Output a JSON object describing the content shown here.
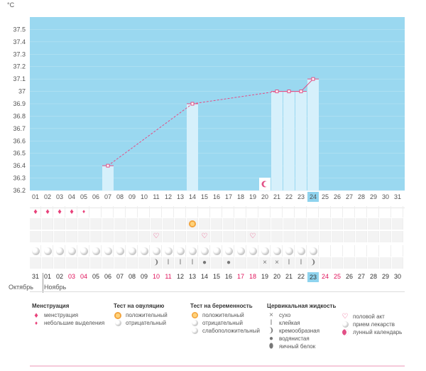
{
  "colors": {
    "chart_bg": "#9ad8f0",
    "bar_fill": "#d6f0fb",
    "line": "#e24f86",
    "accent_red": "#e0135b",
    "selected_day": "#8ed3ee"
  },
  "chart_data": {
    "type": "line",
    "unit": "°C",
    "ylim": [
      36.2,
      37.6
    ],
    "yticks": [
      "37.5",
      "37.4",
      "37.3",
      "37.2",
      "37.1",
      "37",
      "36.9",
      "36.8",
      "36.7",
      "36.6",
      "36.5",
      "36.4",
      "36.3",
      "36.2"
    ],
    "x_days": [
      "01",
      "02",
      "03",
      "04",
      "05",
      "06",
      "07",
      "08",
      "09",
      "10",
      "11",
      "12",
      "13",
      "14",
      "15",
      "16",
      "17",
      "18",
      "19",
      "20",
      "21",
      "22",
      "23",
      "24",
      "25",
      "26",
      "27",
      "28",
      "29",
      "30",
      "31"
    ],
    "selected_day": "24",
    "points": [
      {
        "day": 7,
        "value": 36.4
      },
      {
        "day": 14,
        "value": 36.9
      },
      {
        "day": 21,
        "value": 37.0
      },
      {
        "day": 22,
        "value": 37.0
      },
      {
        "day": 23,
        "value": 37.0
      },
      {
        "day": 24,
        "value": 37.1
      }
    ],
    "bars": [
      7,
      14,
      21,
      22,
      23,
      24
    ],
    "lunar_marker_day": 20
  },
  "rows": {
    "menstruation": [
      {
        "day": 1,
        "icon": "drop-big-icon"
      },
      {
        "day": 2,
        "icon": "drop-big-icon"
      },
      {
        "day": 3,
        "icon": "drop-big-icon"
      },
      {
        "day": 4,
        "icon": "drop-big-icon"
      },
      {
        "day": 5,
        "icon": "drop-small-icon"
      }
    ],
    "ovulation": [
      {
        "day": 14,
        "icon": "ovulation-positive-icon"
      }
    ],
    "intercourse": [
      {
        "day": 11,
        "icon": "heart-icon"
      },
      {
        "day": 15,
        "icon": "heart-icon"
      },
      {
        "day": 19,
        "icon": "heart-icon"
      }
    ],
    "lunar_until_day": 24,
    "fluid": [
      {
        "day": 11,
        "glyph": "❩"
      },
      {
        "day": 12,
        "glyph": "Ⅰ"
      },
      {
        "day": 13,
        "glyph": "Ⅰ"
      },
      {
        "day": 14,
        "glyph": "Ⅰ"
      },
      {
        "day": 15,
        "glyph": "●"
      },
      {
        "day": 17,
        "glyph": "●"
      },
      {
        "day": 20,
        "glyph": "×"
      },
      {
        "day": 21,
        "glyph": "×"
      },
      {
        "day": 22,
        "glyph": "Ⅰ"
      },
      {
        "day": 23,
        "glyph": "Ⅰ"
      },
      {
        "day": 24,
        "glyph": "❩"
      }
    ]
  },
  "bottom_dates": [
    {
      "d": "31",
      "red": false
    },
    {
      "d": "01",
      "red": false
    },
    {
      "d": "02",
      "red": false
    },
    {
      "d": "03",
      "red": true
    },
    {
      "d": "04",
      "red": true
    },
    {
      "d": "05",
      "red": false
    },
    {
      "d": "06",
      "red": false
    },
    {
      "d": "07",
      "red": false
    },
    {
      "d": "08",
      "red": false
    },
    {
      "d": "09",
      "red": false
    },
    {
      "d": "10",
      "red": true
    },
    {
      "d": "11",
      "red": true
    },
    {
      "d": "12",
      "red": false
    },
    {
      "d": "13",
      "red": false
    },
    {
      "d": "14",
      "red": false
    },
    {
      "d": "15",
      "red": false
    },
    {
      "d": "16",
      "red": false
    },
    {
      "d": "17",
      "red": true
    },
    {
      "d": "18",
      "red": true
    },
    {
      "d": "19",
      "red": false
    },
    {
      "d": "20",
      "red": false
    },
    {
      "d": "21",
      "red": false
    },
    {
      "d": "22",
      "red": false
    },
    {
      "d": "23",
      "red": false,
      "sel": true
    },
    {
      "d": "24",
      "red": true
    },
    {
      "d": "25",
      "red": true
    },
    {
      "d": "26",
      "red": false
    },
    {
      "d": "27",
      "red": false
    },
    {
      "d": "28",
      "red": false
    },
    {
      "d": "29",
      "red": false
    },
    {
      "d": "30",
      "red": false
    }
  ],
  "months": {
    "prev": "Октябрь",
    "current": "Ноябрь"
  },
  "legend": {
    "menstruation": {
      "title": "Менструация",
      "items": [
        "менструация",
        "небольшие выделения"
      ]
    },
    "ovulation": {
      "title": "Тест на овуляцию",
      "items": [
        "положительный",
        "отрицательный"
      ]
    },
    "pregnancy": {
      "title": "Тест на беременность",
      "items": [
        "положительный",
        "отрицательный",
        "слабоположительный"
      ]
    },
    "fluid": {
      "title": "Цервикальная жидкость",
      "items": [
        "сухо",
        "клейкая",
        "кремообразная",
        "водянистая",
        "яичный белок"
      ]
    },
    "other": {
      "items": [
        "половой акт",
        "прием лекарств",
        "лунный календарь"
      ]
    }
  }
}
